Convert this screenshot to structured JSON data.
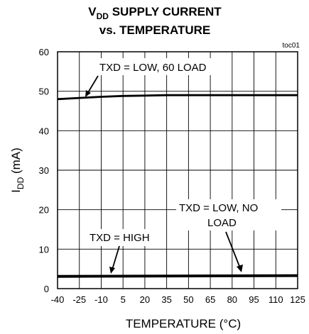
{
  "chart_data": {
    "type": "line",
    "title_main": "V",
    "title_sub": "DD",
    "title_rest": " SUPPLY CURRENT",
    "subtitle": "vs. TEMPERATURE",
    "corner_label": "toc01",
    "xlabel": "TEMPERATURE (°C)",
    "ylabel_main": "I",
    "ylabel_sub": "DD",
    "ylabel_rest": " (mA)",
    "xlim": [
      -40,
      125
    ],
    "ylim": [
      0,
      60
    ],
    "x_ticks": [
      -40,
      -25,
      -10,
      5,
      20,
      35,
      50,
      65,
      80,
      95,
      110,
      125
    ],
    "y_ticks": [
      0,
      10,
      20,
      30,
      40,
      50,
      60
    ],
    "grid": true,
    "series": [
      {
        "name": "TXD = LOW, 60 LOAD",
        "x": [
          -40,
          -25,
          -10,
          5,
          20,
          35,
          50,
          65,
          80,
          95,
          110,
          125
        ],
        "y": [
          48.0,
          48.3,
          48.6,
          48.8,
          48.9,
          49.0,
          49.0,
          49.0,
          49.0,
          49.0,
          49.0,
          49.0
        ]
      },
      {
        "name": "TXD = LOW, NO LOAD",
        "x": [
          -40,
          125
        ],
        "y": [
          3.2,
          3.4
        ]
      },
      {
        "name": "TXD = HIGH",
        "x": [
          -40,
          125
        ],
        "y": [
          3.0,
          3.2
        ]
      }
    ],
    "annotations": [
      {
        "text": "TXD = LOW, 60   LOAD"
      },
      {
        "text": "TXD = LOW, NO"
      },
      {
        "text": "LOAD"
      },
      {
        "text": "TXD = HIGH"
      }
    ]
  }
}
